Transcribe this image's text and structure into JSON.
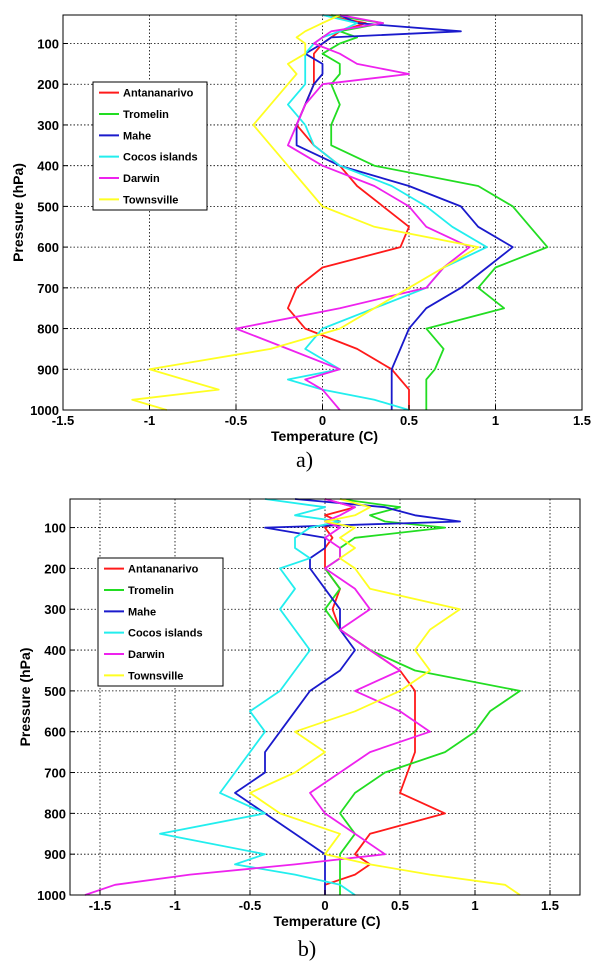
{
  "colors": {
    "Antananarivo": "#ff1a1a",
    "Tromelin": "#22dd22",
    "Mahe": "#1a1acc",
    "Cocos islands": "#22eeee",
    "Darwin": "#ee22ee",
    "Townsville": "#ffff22"
  },
  "chart_data": [
    {
      "panel_label": "a)",
      "type": "line",
      "orientation": "profile",
      "xlabel": "Temperature (C)",
      "ylabel": "Pressure (hPa)",
      "xlim": [
        -1.5,
        1.5
      ],
      "ylim": [
        1000,
        30
      ],
      "y_reversed": true,
      "xticks": [
        "-1.5",
        "-1",
        "-0.5",
        "0",
        "0.5",
        "1",
        "1.5"
      ],
      "yticks": [
        "100",
        "200",
        "300",
        "400",
        "500",
        "600",
        "700",
        "800",
        "900",
        "1000"
      ],
      "grid": true,
      "legend_position": "upper-left",
      "y": [
        30,
        50,
        70,
        85,
        100,
        125,
        150,
        175,
        200,
        250,
        300,
        350,
        400,
        450,
        500,
        550,
        600,
        650,
        700,
        750,
        800,
        850,
        900,
        925,
        950,
        975,
        1000
      ],
      "series": [
        {
          "name": "Antananarivo",
          "values": [
            0.0,
            0.25,
            0.1,
            0.05,
            0.0,
            -0.05,
            -0.05,
            -0.05,
            -0.05,
            -0.1,
            -0.15,
            -0.05,
            0.1,
            0.2,
            0.35,
            0.5,
            0.45,
            0.0,
            -0.15,
            -0.2,
            -0.1,
            0.2,
            0.4,
            0.45,
            0.5,
            0.5,
            0.5
          ]
        },
        {
          "name": "Tromelin",
          "values": [
            0.05,
            0.35,
            0.1,
            0.2,
            0.1,
            0.0,
            0.1,
            0.1,
            0.05,
            0.1,
            0.05,
            0.05,
            0.3,
            0.9,
            1.1,
            1.2,
            1.3,
            1.0,
            0.9,
            1.05,
            0.6,
            0.7,
            0.65,
            0.6,
            0.6,
            0.6,
            0.6
          ]
        },
        {
          "name": "Mahe",
          "values": [
            0.1,
            0.2,
            0.8,
            0.05,
            0.0,
            -0.1,
            0.0,
            0.0,
            -0.05,
            -0.1,
            -0.15,
            -0.15,
            0.1,
            0.5,
            0.8,
            0.9,
            1.1,
            0.95,
            0.8,
            0.6,
            0.5,
            0.45,
            0.4,
            0.4,
            0.4,
            0.4,
            0.4
          ]
        },
        {
          "name": "Cocos islands",
          "values": [
            0.0,
            0.2,
            0.1,
            0.0,
            -0.05,
            -0.1,
            -0.1,
            -0.1,
            -0.1,
            -0.2,
            -0.1,
            -0.05,
            0.1,
            0.4,
            0.6,
            0.75,
            0.95,
            0.7,
            0.6,
            0.3,
            0.0,
            -0.1,
            0.1,
            -0.2,
            0.0,
            0.3,
            0.5
          ]
        },
        {
          "name": "Darwin",
          "values": [
            0.1,
            0.35,
            0.05,
            0.0,
            -0.05,
            0.1,
            0.2,
            0.5,
            0.0,
            -0.1,
            -0.15,
            -0.2,
            0.0,
            0.3,
            0.5,
            0.6,
            0.85,
            0.7,
            0.6,
            0.1,
            -0.5,
            -0.2,
            0.1,
            -0.1,
            0.0,
            0.05,
            0.1
          ]
        },
        {
          "name": "Townsville",
          "values": [
            0.1,
            0.0,
            -0.1,
            -0.15,
            -0.1,
            -0.1,
            -0.2,
            -0.15,
            -0.2,
            -0.3,
            -0.4,
            -0.3,
            -0.2,
            -0.1,
            0.0,
            0.3,
            0.9,
            0.7,
            0.5,
            0.3,
            0.1,
            -0.3,
            -1.0,
            -0.8,
            -0.6,
            -1.1,
            -0.9
          ]
        }
      ]
    },
    {
      "panel_label": "b)",
      "type": "line",
      "orientation": "profile",
      "xlabel": "Temperature (C)",
      "ylabel": "Pressure (hPa)",
      "xlim": [
        -1.7,
        1.7
      ],
      "ylim": [
        1000,
        30
      ],
      "y_reversed": true,
      "xticks": [
        "-1.5",
        "-1",
        "-0.5",
        "0",
        "0.5",
        "1",
        "1.5"
      ],
      "yticks": [
        "100",
        "200",
        "300",
        "400",
        "500",
        "600",
        "700",
        "800",
        "900",
        "1000"
      ],
      "grid": true,
      "legend_position": "upper-left",
      "y": [
        30,
        50,
        70,
        85,
        100,
        125,
        150,
        175,
        200,
        250,
        300,
        350,
        400,
        450,
        500,
        550,
        600,
        650,
        700,
        750,
        800,
        850,
        900,
        925,
        950,
        975,
        1000
      ],
      "series": [
        {
          "name": "Antananarivo",
          "values": [
            0.0,
            0.2,
            0.0,
            0.1,
            0.0,
            0.05,
            0.0,
            0.0,
            0.0,
            0.1,
            0.05,
            0.1,
            0.3,
            0.5,
            0.6,
            0.6,
            0.6,
            0.6,
            0.55,
            0.5,
            0.8,
            0.3,
            0.2,
            0.3,
            0.2,
            0.0,
            0.0
          ]
        },
        {
          "name": "Tromelin",
          "values": [
            0.1,
            0.5,
            0.3,
            0.4,
            0.8,
            0.2,
            0.1,
            0.1,
            0.0,
            0.1,
            0.0,
            0.1,
            0.3,
            0.6,
            1.3,
            1.1,
            1.0,
            0.8,
            0.4,
            0.2,
            0.1,
            0.2,
            0.1,
            0.1,
            0.1,
            0.1,
            0.1
          ]
        },
        {
          "name": "Mahe",
          "values": [
            -0.2,
            0.4,
            0.6,
            0.9,
            -0.4,
            0.0,
            0.0,
            -0.1,
            -0.1,
            0.0,
            0.1,
            0.1,
            0.2,
            0.1,
            -0.1,
            -0.2,
            -0.3,
            -0.4,
            -0.4,
            -0.6,
            -0.4,
            -0.2,
            0.0,
            0.0,
            0.0,
            0.0,
            0.0
          ]
        },
        {
          "name": "Cocos islands",
          "values": [
            -0.4,
            0.0,
            -0.2,
            0.1,
            -0.1,
            -0.2,
            -0.2,
            -0.1,
            -0.3,
            -0.2,
            -0.3,
            -0.2,
            -0.1,
            -0.2,
            -0.3,
            -0.5,
            -0.4,
            -0.5,
            -0.6,
            -0.7,
            -0.4,
            -1.1,
            -0.4,
            -0.6,
            -0.2,
            0.1,
            0.2
          ]
        },
        {
          "name": "Darwin",
          "values": [
            0.0,
            0.2,
            0.1,
            0.0,
            0.1,
            0.0,
            0.1,
            0.1,
            0.0,
            0.2,
            0.3,
            0.1,
            0.3,
            0.5,
            0.2,
            0.5,
            0.7,
            0.3,
            0.1,
            -0.1,
            0.0,
            0.2,
            0.4,
            -0.2,
            -0.9,
            -1.4,
            -1.6
          ]
        },
        {
          "name": "Townsville",
          "values": [
            0.1,
            0.3,
            0.2,
            0.0,
            0.2,
            0.1,
            0.2,
            0.1,
            0.2,
            0.3,
            0.9,
            0.7,
            0.6,
            0.7,
            0.5,
            0.2,
            -0.2,
            0.0,
            -0.2,
            -0.5,
            -0.3,
            0.1,
            0.0,
            0.3,
            0.7,
            1.2,
            1.3
          ]
        }
      ]
    }
  ]
}
